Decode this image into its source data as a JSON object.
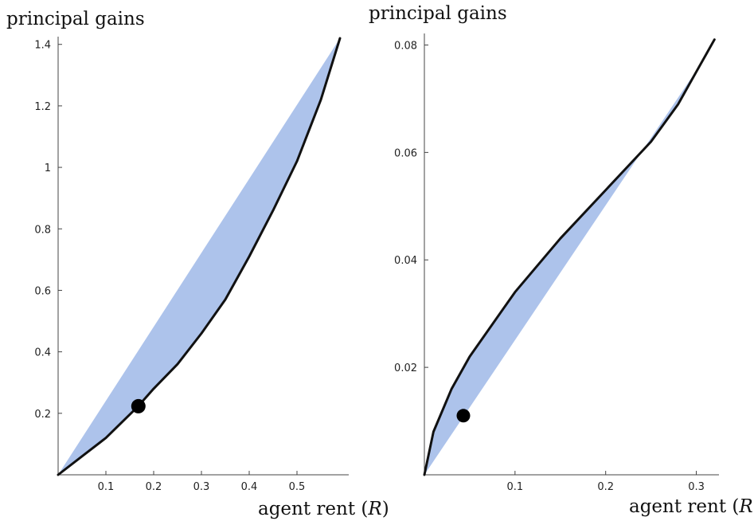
{
  "chart_data": [
    {
      "type": "area",
      "ylabel": "principal gains",
      "xlabel": "agent rent",
      "xlabel_var": "R",
      "xlim": [
        0,
        0.6
      ],
      "ylim": [
        0,
        1.42
      ],
      "xticks": [
        0.1,
        0.2,
        0.3,
        0.4,
        0.5
      ],
      "xtick_labels": [
        "0.1",
        "0.2",
        "0.3",
        "0.4",
        "0.5"
      ],
      "yticks": [
        0.2,
        0.4,
        0.6,
        0.8,
        1.0,
        1.2,
        1.4
      ],
      "ytick_labels": [
        "0.2",
        "0.4",
        "0.6",
        "0.8",
        "1",
        "1.2",
        "1.4"
      ],
      "fill_color": "#adc3eb",
      "line_color": "#111111",
      "region": {
        "upper": [
          [
            0,
            0
          ],
          [
            0.59,
            1.42
          ]
        ],
        "lower": [
          [
            0,
            0
          ],
          [
            0.05,
            0.06
          ],
          [
            0.1,
            0.12
          ],
          [
            0.167,
            0.222
          ],
          [
            0.2,
            0.28
          ],
          [
            0.25,
            0.36
          ],
          [
            0.3,
            0.46
          ],
          [
            0.35,
            0.57
          ],
          [
            0.4,
            0.71
          ],
          [
            0.45,
            0.86
          ],
          [
            0.5,
            1.02
          ],
          [
            0.55,
            1.22
          ],
          [
            0.59,
            1.42
          ]
        ]
      },
      "curve": [
        [
          0,
          0
        ],
        [
          0.05,
          0.06
        ],
        [
          0.1,
          0.12
        ],
        [
          0.167,
          0.222
        ],
        [
          0.2,
          0.28
        ],
        [
          0.25,
          0.36
        ],
        [
          0.3,
          0.46
        ],
        [
          0.35,
          0.57
        ],
        [
          0.4,
          0.71
        ],
        [
          0.45,
          0.86
        ],
        [
          0.5,
          1.02
        ],
        [
          0.55,
          1.22
        ],
        [
          0.59,
          1.42
        ]
      ],
      "point": [
        0.168,
        0.223
      ]
    },
    {
      "type": "area",
      "ylabel": "principal gains",
      "xlabel": "agent rent",
      "xlabel_var": "R",
      "xlim": [
        0,
        0.325
      ],
      "ylim": [
        0,
        0.082
      ],
      "xticks": [
        0.1,
        0.2,
        0.3
      ],
      "xtick_labels": [
        "0.1",
        "0.2",
        "0.3"
      ],
      "yticks": [
        0.02,
        0.04,
        0.06,
        0.08
      ],
      "ytick_labels": [
        "0.02",
        "0.04",
        "0.06",
        "0.08"
      ],
      "fill_color": "#adc3eb",
      "line_color": "#111111",
      "region": {
        "upper": [
          [
            0,
            0
          ],
          [
            0.01,
            0.008
          ],
          [
            0.03,
            0.016
          ],
          [
            0.05,
            0.022
          ],
          [
            0.1,
            0.034
          ],
          [
            0.15,
            0.044
          ],
          [
            0.2,
            0.053
          ],
          [
            0.25,
            0.062
          ],
          [
            0.28,
            0.069
          ],
          [
            0.3,
            0.075
          ],
          [
            0.315,
            0.079
          ]
        ],
        "lower": [
          [
            0,
            0
          ],
          [
            0.315,
            0.079
          ]
        ]
      },
      "curve": [
        [
          0,
          0
        ],
        [
          0.01,
          0.008
        ],
        [
          0.03,
          0.016
        ],
        [
          0.05,
          0.022
        ],
        [
          0.1,
          0.034
        ],
        [
          0.15,
          0.044
        ],
        [
          0.2,
          0.053
        ],
        [
          0.25,
          0.062
        ],
        [
          0.28,
          0.069
        ],
        [
          0.3,
          0.075
        ],
        [
          0.32,
          0.081
        ]
      ],
      "point": [
        0.043,
        0.011
      ]
    }
  ]
}
